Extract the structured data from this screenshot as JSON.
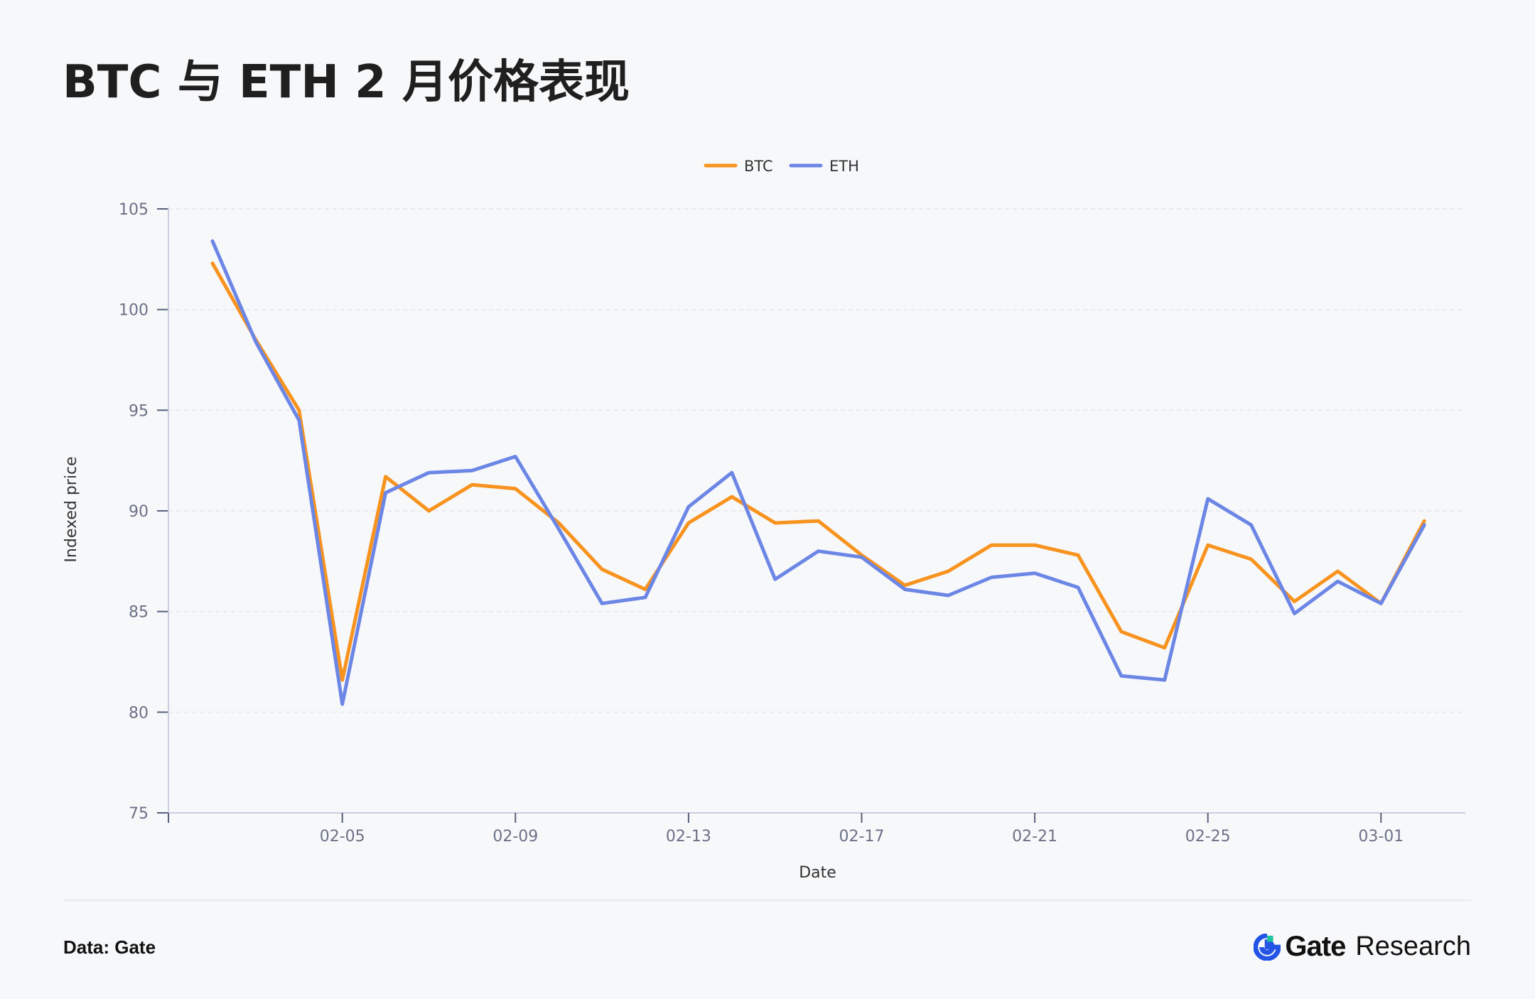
{
  "page": {
    "title": "BTC 与 ETH 2 月价格表现",
    "source": "Data: Gate",
    "brand_name": "Gate",
    "brand_suffix": "Research"
  },
  "colors": {
    "btc": "#f7931e",
    "eth": "#6c86e6",
    "axis": "#c8cde0",
    "grid": "#e3e6ed",
    "tick_text": "#6b7287",
    "brand_accent": "#2354e6"
  },
  "chart_data": {
    "type": "line",
    "title": "",
    "xlabel": "Date",
    "ylabel": "Indexed price",
    "ylim": [
      75,
      105
    ],
    "yticks": [
      75,
      80,
      85,
      90,
      95,
      100,
      105
    ],
    "x": [
      "02-02",
      "02-03",
      "02-04",
      "02-05",
      "02-06",
      "02-07",
      "02-08",
      "02-09",
      "02-10",
      "02-11",
      "02-12",
      "02-13",
      "02-14",
      "02-15",
      "02-16",
      "02-17",
      "02-18",
      "02-19",
      "02-20",
      "02-21",
      "02-22",
      "02-23",
      "02-24",
      "02-25",
      "02-26",
      "02-27",
      "02-28",
      "03-01",
      "03-02"
    ],
    "xticks": [
      "02-05",
      "02-09",
      "02-13",
      "02-17",
      "02-21",
      "02-25",
      "03-01"
    ],
    "grid": "horizontal dashed",
    "legend_position": "top-center",
    "series": [
      {
        "name": "BTC",
        "color": "#f7931e",
        "values": [
          102.3,
          98.5,
          95.0,
          81.6,
          91.7,
          90.0,
          91.3,
          91.1,
          89.4,
          87.1,
          86.1,
          89.4,
          90.7,
          89.4,
          89.5,
          87.8,
          86.3,
          87.0,
          88.3,
          88.3,
          87.8,
          84.0,
          83.2,
          88.3,
          87.6,
          85.5,
          87.0,
          85.4,
          89.5
        ]
      },
      {
        "name": "ETH",
        "color": "#6c86e6",
        "values": [
          103.4,
          98.4,
          94.5,
          80.4,
          90.9,
          91.9,
          92.0,
          92.7,
          89.1,
          85.4,
          85.7,
          90.2,
          91.9,
          86.6,
          88.0,
          87.7,
          86.1,
          85.8,
          86.7,
          86.9,
          86.2,
          81.8,
          81.6,
          90.6,
          89.3,
          84.9,
          86.5,
          85.4,
          89.3
        ]
      }
    ]
  }
}
